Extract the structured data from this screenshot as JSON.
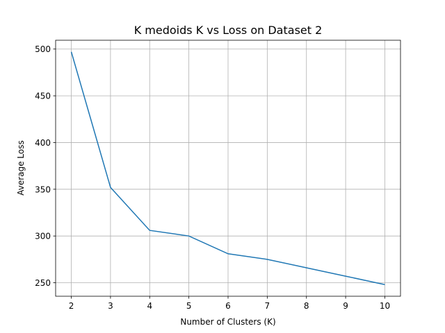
{
  "chart_data": {
    "type": "line",
    "title": "K medoids K vs Loss on Dataset 2",
    "xlabel": "Number of Clusters (K)",
    "ylabel": "Average Loss",
    "x": [
      2,
      3,
      4,
      5,
      6,
      7,
      8,
      9,
      10
    ],
    "series": [
      {
        "values": [
          497,
          352,
          306,
          300,
          281,
          275,
          266,
          257,
          248
        ],
        "color": "#1f77b4"
      }
    ],
    "xticks": [
      2,
      3,
      4,
      5,
      6,
      7,
      8,
      9,
      10
    ],
    "yticks": [
      250,
      300,
      350,
      400,
      450,
      500
    ],
    "xlim": [
      1.6,
      10.4
    ],
    "ylim": [
      235.55,
      509.45
    ],
    "grid": true
  }
}
